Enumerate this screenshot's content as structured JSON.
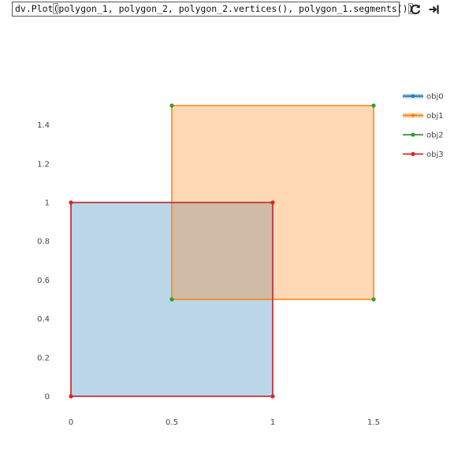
{
  "toolbar": {
    "command_prefix": "dv.Plot",
    "command_open": "(",
    "command_args": "polygon_1, polygon_2, polygon_2.vertices(), polygon_1.segments()",
    "command_close": ")",
    "refresh_icon": "refresh-icon",
    "exit_icon": "exit-icon"
  },
  "chart_data": {
    "type": "scatter",
    "title": "",
    "xlabel": "",
    "ylabel": "",
    "xlim": [
      0,
      1.5
    ],
    "ylim": [
      0,
      1.5
    ],
    "xticks": [
      "0",
      "0.5",
      "1",
      "1.5"
    ],
    "yticks": [
      "0",
      "0.2",
      "0.4",
      "0.6",
      "0.8",
      "1",
      "1.2",
      "1.4"
    ],
    "grid": false,
    "legend_position": "top-right",
    "series": [
      {
        "name": "obj0",
        "color": "#1f77b4",
        "fill": true,
        "x": [
          0,
          1,
          1,
          0,
          0
        ],
        "y": [
          0,
          0,
          1,
          1,
          0
        ]
      },
      {
        "name": "obj1",
        "color": "#ff7f0e",
        "fill": true,
        "x": [
          0.5,
          1.5,
          1.5,
          0.5,
          0.5
        ],
        "y": [
          0.5,
          0.5,
          1.5,
          1.5,
          0.5
        ]
      },
      {
        "name": "obj2",
        "color": "#2ca02c",
        "fill": false,
        "markers_only": true,
        "x": [
          0.5,
          1.5,
          1.5,
          0.5
        ],
        "y": [
          0.5,
          0.5,
          1.5,
          1.5
        ]
      },
      {
        "name": "obj3",
        "color": "#d62728",
        "fill": false,
        "x": [
          0,
          1,
          1,
          0,
          0
        ],
        "y": [
          0,
          0,
          1,
          1,
          0
        ]
      }
    ]
  }
}
